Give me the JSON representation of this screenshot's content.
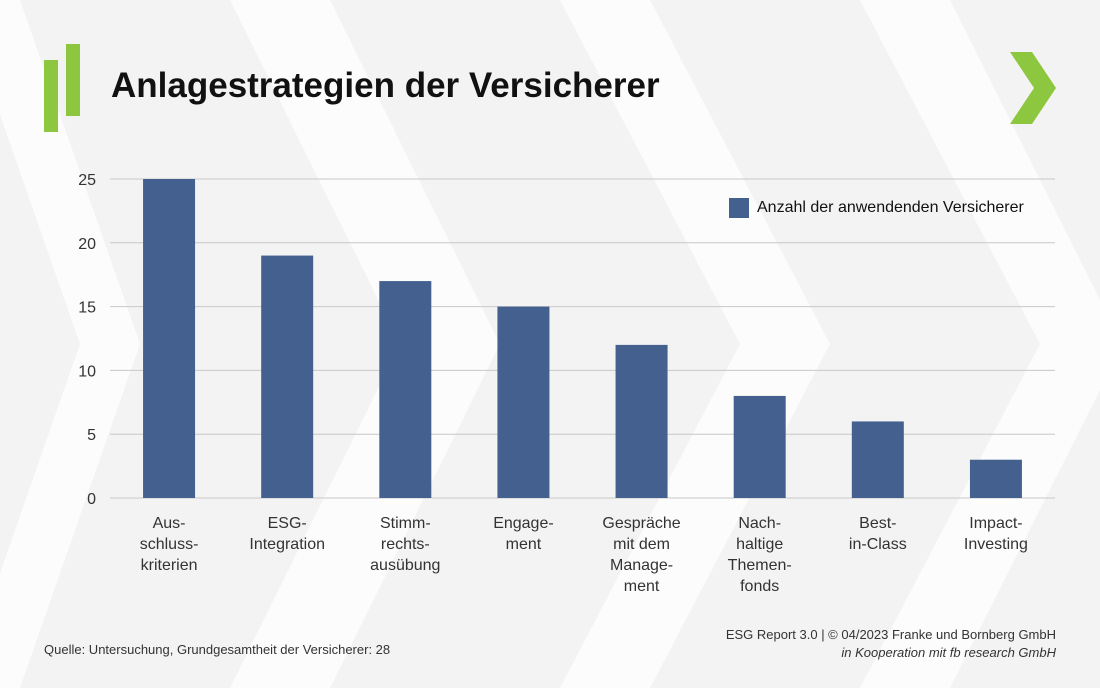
{
  "page": {
    "title": "Anlagestrategien der Versicherer",
    "source": "Quelle: Untersuchung, Grundgesamtheit der Versicherer: 28",
    "credit": "ESG Report 3.0 | © 04/2023 Franke und Bornberg GmbH",
    "cooperation": "in Kooperation mit fb research GmbH",
    "accent_color": "#8dc63f",
    "bar_color": "#44608f"
  },
  "chart_data": {
    "type": "bar",
    "title": "Anlagestrategien der Versicherer",
    "xlabel": "",
    "ylabel": "",
    "categories": [
      "Aus-\nschluss-\nkriterien",
      "ESG-\nIntegration",
      "Stimm-\nrechts-\nausübung",
      "Engage-\nment",
      "Gespräche\nmit dem\nManage-\nment",
      "Nach-\nhaltige\nThemen-\nfonds",
      "Best-\nin-Class",
      "Impact-\nInvesting"
    ],
    "series": [
      {
        "name": "Anzahl der anwendenden Versicherer",
        "values": [
          25,
          19,
          17,
          15,
          12,
          8,
          6,
          3
        ]
      }
    ],
    "ylim": [
      0,
      25
    ],
    "yticks": [
      0,
      5,
      10,
      15,
      20,
      25
    ],
    "grid": true,
    "legend_position": "top-right"
  }
}
